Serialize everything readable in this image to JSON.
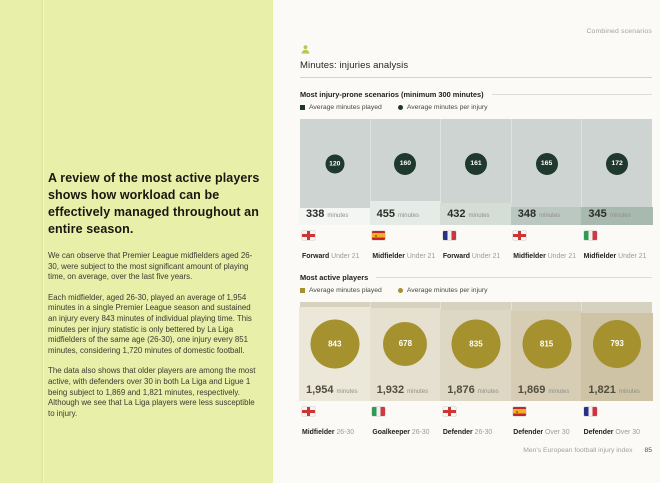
{
  "page": {
    "top_right_label": "Combined scenarios",
    "title": "Minutes: injuries analysis",
    "footer_text": "Men's European football injury index",
    "footer_page": "85"
  },
  "left_panel": {
    "headline": "A review of the most active players shows how workload can be effectively managed throughout an entire season.",
    "paragraphs": [
      "We can observe that Premier League midfielders aged 26-30, were subject to the most significant amount of playing time, on average, over the last five years.",
      "Each midfielder, aged 26-30, played an average of 1,954 minutes in a single Premier League season and sustained an injury every 843 minutes of individual playing time. This minutes per injury statistic is only bettered by La Liga midfielders of the same age (26-30), one injury every 851 minutes, considering 1,720 minutes of domestic football.",
      "The data also shows that older players are among the most active, with defenders over 30 in both La Liga and Ligue 1 being subject to 1,869 and 1,821 minutes, respectively. Although we see that La Liga players were less susceptible to injury."
    ]
  },
  "colors": {
    "left_page_bg": "#e7efa9",
    "right_page_bg": "#fbfaf7",
    "injury_series": "#20392f",
    "active_series": "#a6912f",
    "chart1_bg": "#cdd4d1",
    "chart2_bg": "#d7d1c0",
    "person_icon": "#b9c75a"
  },
  "chart_data": [
    {
      "type": "bar",
      "title": "Most injury-prone scenarios (minimum 300 minutes)",
      "legend": [
        "Average minutes played",
        "Average minutes per injury"
      ],
      "unit": "minutes",
      "scale_max": 2050,
      "bubble_scale": 1.7,
      "categories": [
        "Forward Under 21",
        "Midfielder Under 21",
        "Forward Under 21",
        "Midfielder Under 21",
        "Midfielder Under 21"
      ],
      "series": [
        {
          "name": "Average minutes played",
          "values": [
            338,
            455,
            432,
            348,
            345
          ]
        },
        {
          "name": "Average minutes per injury",
          "values": [
            120,
            160,
            161,
            165,
            172
          ]
        }
      ],
      "items": [
        {
          "flag": "england",
          "position": "Forward",
          "age": "Under 21",
          "minutes_played_label": "338",
          "minutes_per_injury": 120
        },
        {
          "flag": "spain",
          "position": "Midfielder",
          "age": "Under 21",
          "minutes_played_label": "455",
          "minutes_per_injury": 160
        },
        {
          "flag": "france",
          "position": "Forward",
          "age": "Under 21",
          "minutes_played_label": "432",
          "minutes_per_injury": 161
        },
        {
          "flag": "england",
          "position": "Midfielder",
          "age": "Under 21",
          "minutes_played_label": "348",
          "minutes_per_injury": 165
        },
        {
          "flag": "italy",
          "position": "Midfielder",
          "age": "Under 21",
          "minutes_played_label": "345",
          "minutes_per_injury": 172
        }
      ]
    },
    {
      "type": "bar",
      "title": "Most active players",
      "legend": [
        "Average minutes played",
        "Average minutes per injury"
      ],
      "unit": "minutes",
      "scale_max": 2050,
      "bubble_scale": 1.7,
      "categories": [
        "Midfielder 26-30",
        "Goalkeeper 26-30",
        "Defender 26-30",
        "Defender Over 30",
        "Defender Over 30"
      ],
      "series": [
        {
          "name": "Average minutes played",
          "values": [
            1954,
            1932,
            1876,
            1869,
            1821
          ]
        },
        {
          "name": "Average minutes per injury",
          "values": [
            843,
            678,
            835,
            815,
            793
          ]
        }
      ],
      "items": [
        {
          "flag": "england",
          "position": "Midfielder",
          "age": "26-30",
          "minutes_played_label": "1,954",
          "minutes_per_injury": 843
        },
        {
          "flag": "italy",
          "position": "Goalkeeper",
          "age": "26-30",
          "minutes_played_label": "1,932",
          "minutes_per_injury": 678
        },
        {
          "flag": "england",
          "position": "Defender",
          "age": "26-30",
          "minutes_played_label": "1,876",
          "minutes_per_injury": 835
        },
        {
          "flag": "spain",
          "position": "Defender",
          "age": "Over 30",
          "minutes_played_label": "1,869",
          "minutes_per_injury": 815
        },
        {
          "flag": "france",
          "position": "Defender",
          "age": "Over 30",
          "minutes_played_label": "1,821",
          "minutes_per_injury": 793
        }
      ]
    }
  ]
}
